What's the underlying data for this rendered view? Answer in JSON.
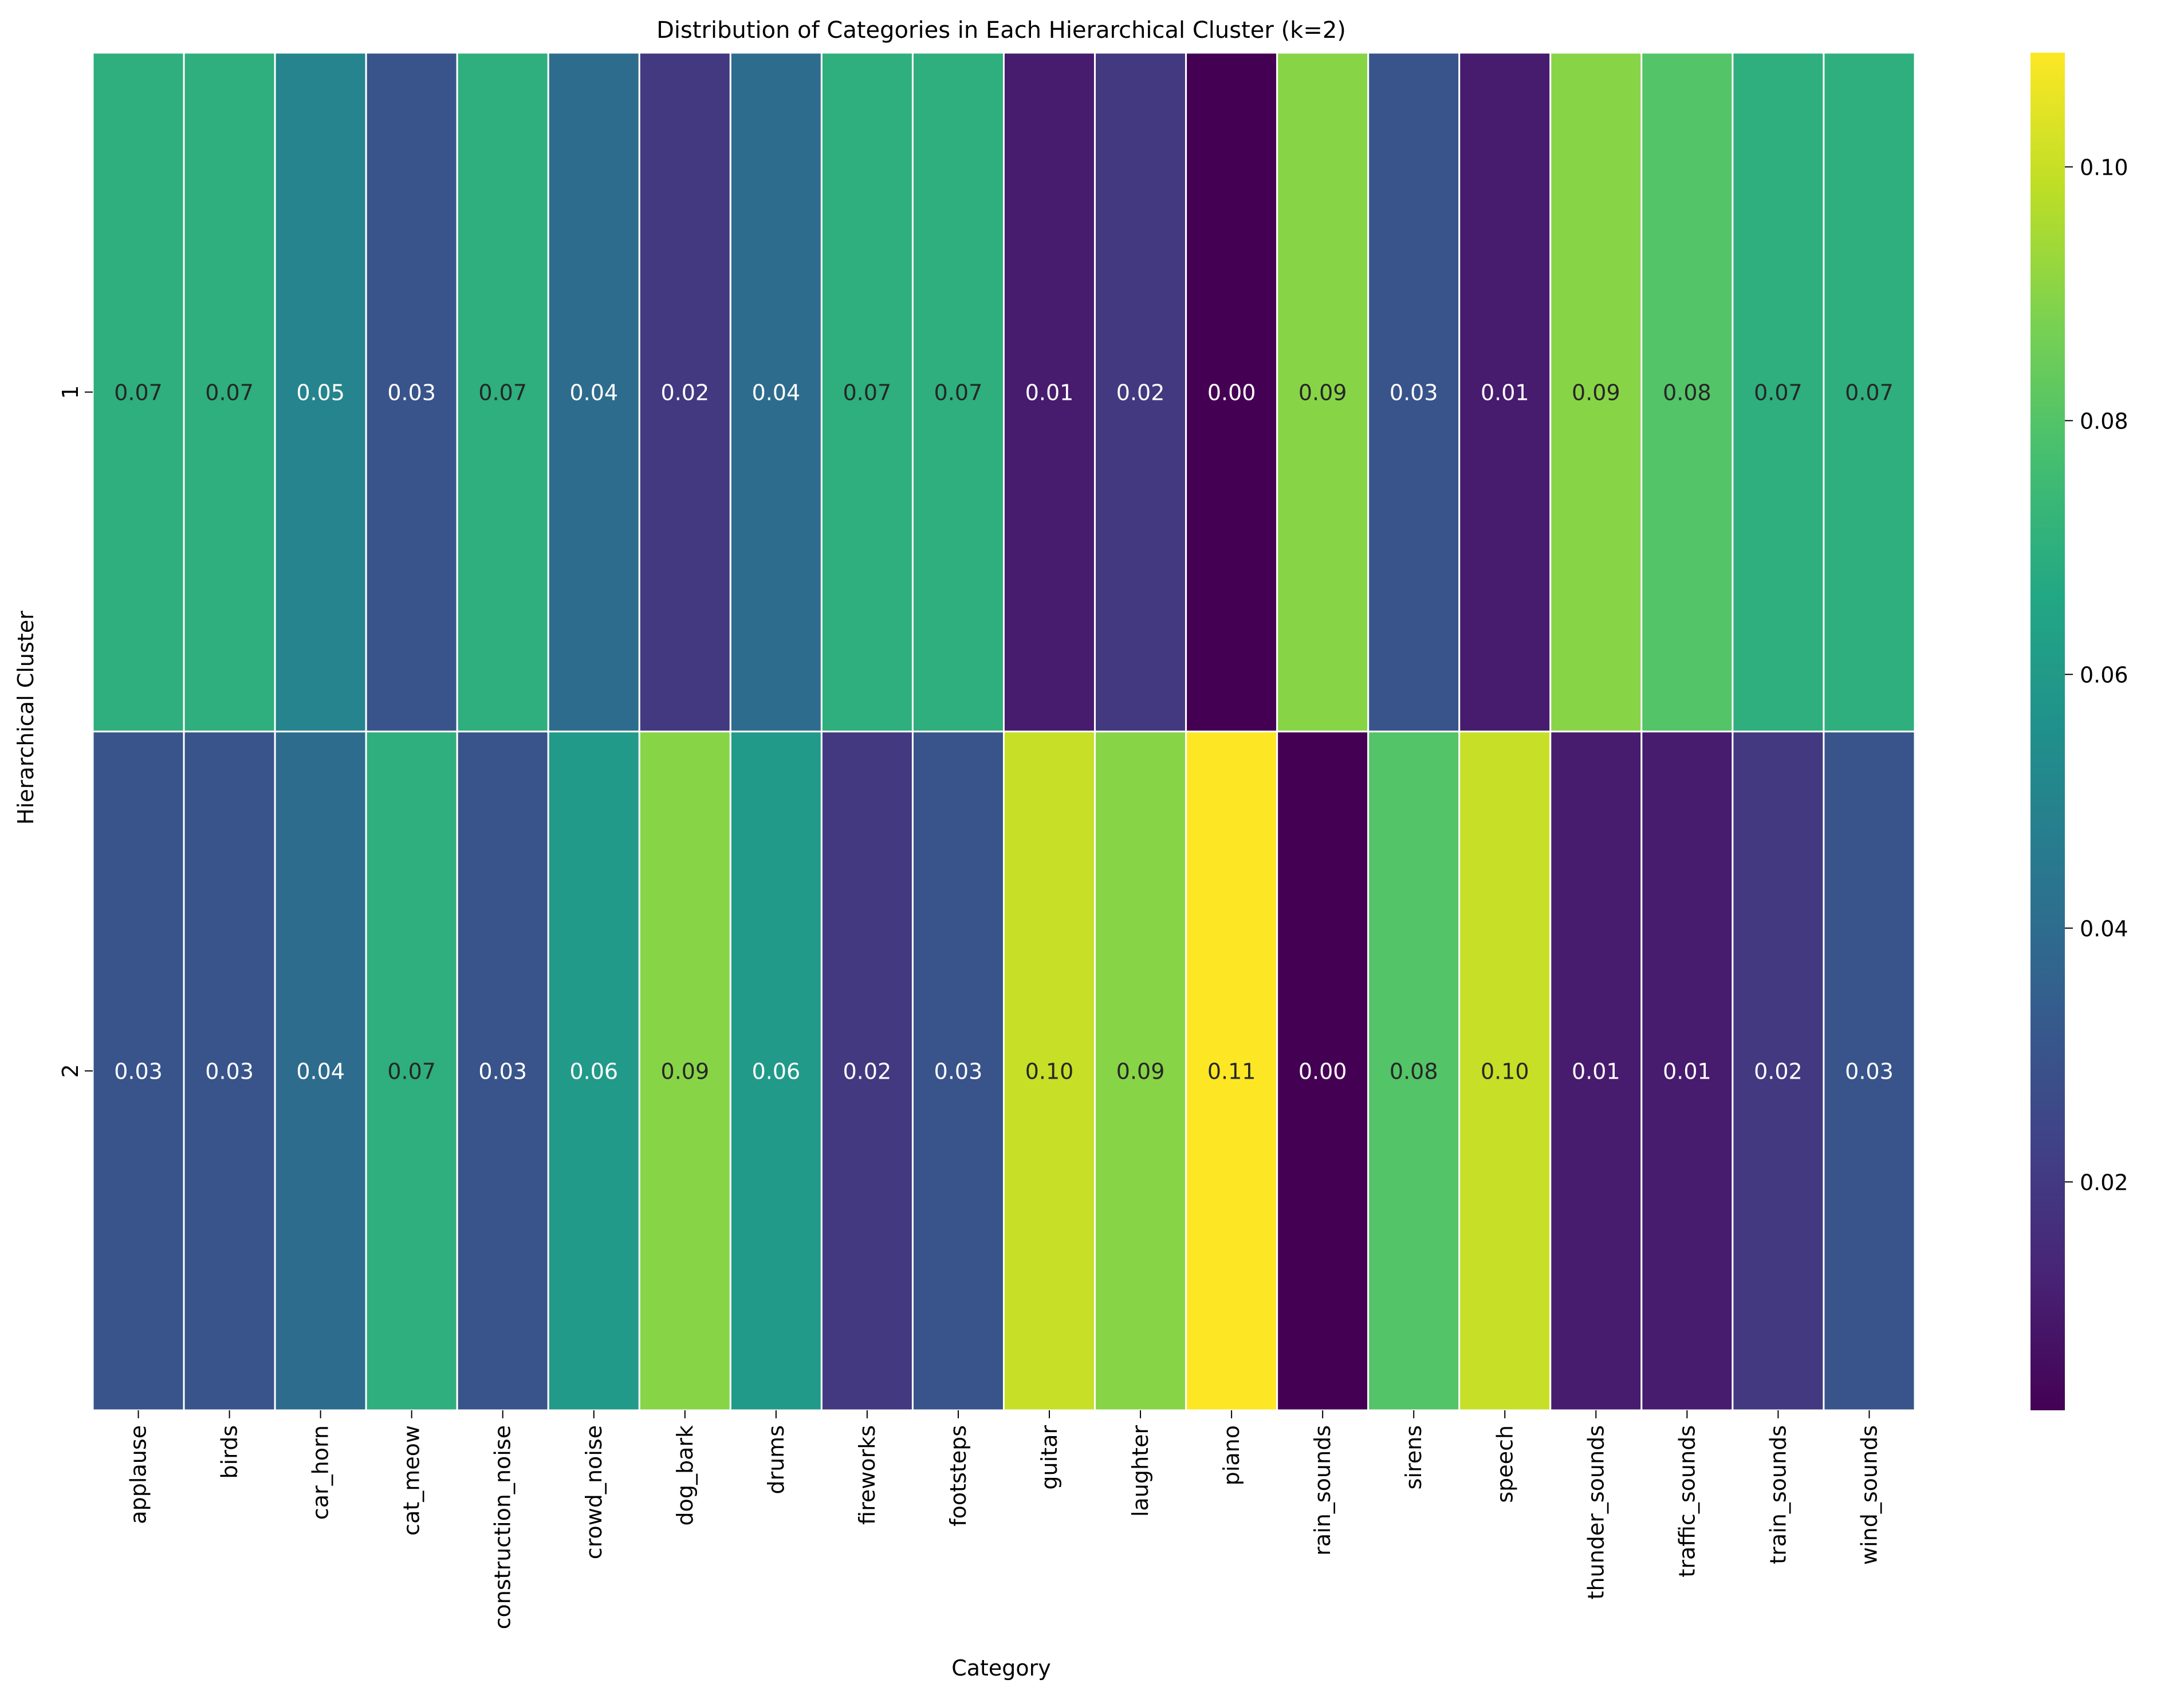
{
  "chart_data": {
    "type": "heatmap",
    "title": "Distribution of Categories in Each Hierarchical Cluster (k=2)",
    "xlabel": "Category",
    "ylabel": "Hierarchical Cluster",
    "categories": [
      "applause",
      "birds",
      "car_horn",
      "cat_meow",
      "construction_noise",
      "crowd_noise",
      "dog_bark",
      "drums",
      "fireworks",
      "footsteps",
      "guitar",
      "laughter",
      "piano",
      "rain_sounds",
      "sirens",
      "speech",
      "thunder_sounds",
      "traffic_sounds",
      "train_sounds",
      "wind_sounds"
    ],
    "rows": [
      "1",
      "2"
    ],
    "values": [
      [
        0.07,
        0.07,
        0.05,
        0.03,
        0.07,
        0.04,
        0.02,
        0.04,
        0.07,
        0.07,
        0.01,
        0.02,
        0.0,
        0.09,
        0.03,
        0.01,
        0.09,
        0.08,
        0.07,
        0.07
      ],
      [
        0.03,
        0.03,
        0.04,
        0.07,
        0.03,
        0.06,
        0.09,
        0.06,
        0.02,
        0.03,
        0.1,
        0.09,
        0.11,
        0.0,
        0.08,
        0.1,
        0.01,
        0.01,
        0.02,
        0.03
      ]
    ],
    "colorscale": "viridis",
    "colorbar": {
      "range": [
        0.002,
        0.109
      ],
      "ticks": [
        "0.02",
        "0.04",
        "0.06",
        "0.08",
        "0.10"
      ]
    }
  }
}
